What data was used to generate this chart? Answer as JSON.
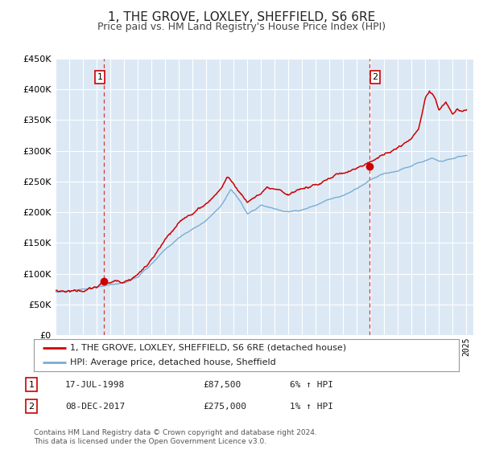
{
  "title": "1, THE GROVE, LOXLEY, SHEFFIELD, S6 6RE",
  "subtitle": "Price paid vs. HM Land Registry's House Price Index (HPI)",
  "title_fontsize": 11,
  "subtitle_fontsize": 9,
  "background_color": "#ffffff",
  "plot_bg_color": "#dce9f5",
  "grid_color": "#ffffff",
  "red_line_color": "#cc0000",
  "blue_line_color": "#7aadd4",
  "ylim": [
    0,
    450000
  ],
  "yticks": [
    0,
    50000,
    100000,
    150000,
    200000,
    250000,
    300000,
    350000,
    400000,
    450000
  ],
  "xlim_start": 1995.0,
  "xlim_end": 2025.5,
  "sale1_x": 1998.54,
  "sale1_y": 87500,
  "sale2_x": 2017.93,
  "sale2_y": 275000,
  "legend_entry1": "1, THE GROVE, LOXLEY, SHEFFIELD, S6 6RE (detached house)",
  "legend_entry2": "HPI: Average price, detached house, Sheffield",
  "table_row1": [
    "1",
    "17-JUL-1998",
    "£87,500",
    "6% ↑ HPI"
  ],
  "table_row2": [
    "2",
    "08-DEC-2017",
    "£275,000",
    "1% ↑ HPI"
  ],
  "footer1": "Contains HM Land Registry data © Crown copyright and database right 2024.",
  "footer2": "This data is licensed under the Open Government Licence v3.0.",
  "waypoints_hpi": [
    [
      1995.0,
      70000
    ],
    [
      1996.0,
      71000
    ],
    [
      1997.0,
      73000
    ],
    [
      1998.0,
      76000
    ],
    [
      1999.0,
      79000
    ],
    [
      2000.0,
      83000
    ],
    [
      2001.0,
      93000
    ],
    [
      2002.0,
      112000
    ],
    [
      2003.0,
      135000
    ],
    [
      2004.0,
      155000
    ],
    [
      2005.0,
      168000
    ],
    [
      2006.0,
      183000
    ],
    [
      2007.0,
      205000
    ],
    [
      2007.8,
      235000
    ],
    [
      2008.5,
      215000
    ],
    [
      2009.0,
      195000
    ],
    [
      2009.5,
      200000
    ],
    [
      2010.0,
      208000
    ],
    [
      2011.0,
      200000
    ],
    [
      2012.0,
      195000
    ],
    [
      2013.0,
      197000
    ],
    [
      2014.0,
      205000
    ],
    [
      2015.0,
      215000
    ],
    [
      2016.0,
      222000
    ],
    [
      2017.0,
      232000
    ],
    [
      2018.0,
      248000
    ],
    [
      2019.0,
      258000
    ],
    [
      2020.0,
      262000
    ],
    [
      2021.0,
      270000
    ],
    [
      2021.5,
      278000
    ],
    [
      2022.0,
      282000
    ],
    [
      2022.5,
      285000
    ],
    [
      2023.0,
      280000
    ],
    [
      2023.5,
      282000
    ],
    [
      2024.0,
      285000
    ],
    [
      2024.5,
      288000
    ],
    [
      2025.0,
      290000
    ]
  ],
  "waypoints_prop": [
    [
      1995.0,
      72000
    ],
    [
      1996.0,
      73000
    ],
    [
      1997.0,
      75000
    ],
    [
      1998.0,
      78000
    ],
    [
      1998.54,
      87500
    ],
    [
      1999.0,
      85000
    ],
    [
      2000.0,
      90000
    ],
    [
      2001.0,
      103000
    ],
    [
      2002.0,
      125000
    ],
    [
      2003.0,
      155000
    ],
    [
      2004.0,
      178000
    ],
    [
      2005.0,
      195000
    ],
    [
      2006.0,
      210000
    ],
    [
      2007.0,
      235000
    ],
    [
      2007.5,
      255000
    ],
    [
      2008.0,
      245000
    ],
    [
      2008.5,
      230000
    ],
    [
      2009.0,
      215000
    ],
    [
      2009.5,
      225000
    ],
    [
      2010.0,
      230000
    ],
    [
      2010.5,
      235000
    ],
    [
      2011.0,
      228000
    ],
    [
      2012.0,
      218000
    ],
    [
      2013.0,
      228000
    ],
    [
      2014.0,
      235000
    ],
    [
      2015.0,
      245000
    ],
    [
      2016.0,
      255000
    ],
    [
      2017.0,
      265000
    ],
    [
      2017.93,
      275000
    ],
    [
      2018.5,
      285000
    ],
    [
      2019.0,
      290000
    ],
    [
      2020.0,
      300000
    ],
    [
      2021.0,
      315000
    ],
    [
      2021.5,
      330000
    ],
    [
      2022.0,
      380000
    ],
    [
      2022.3,
      395000
    ],
    [
      2022.7,
      385000
    ],
    [
      2023.0,
      365000
    ],
    [
      2023.5,
      375000
    ],
    [
      2024.0,
      355000
    ],
    [
      2024.3,
      362000
    ],
    [
      2024.7,
      358000
    ],
    [
      2025.0,
      360000
    ]
  ]
}
